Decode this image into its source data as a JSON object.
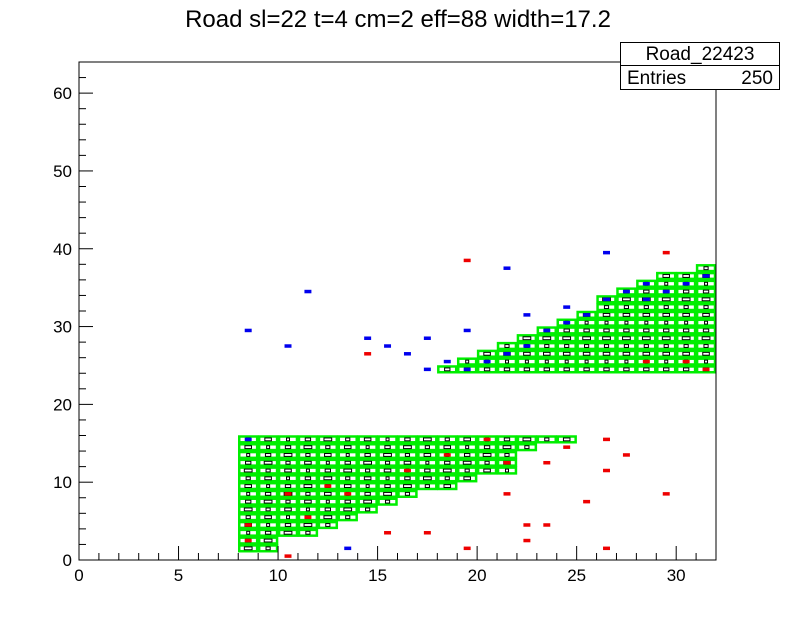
{
  "chart_data": {
    "type": "heatmap",
    "title": "Road sl=22 t=4 cm=2 eff=88 width=17.2",
    "xlabel": "",
    "ylabel": "",
    "xlim": [
      0,
      32
    ],
    "ylim": [
      0,
      64
    ],
    "x_ticks": [
      0,
      5,
      10,
      15,
      20,
      25,
      30
    ],
    "y_ticks": [
      0,
      10,
      20,
      30,
      40,
      50,
      60
    ],
    "grid": false,
    "legend_position": "top-right",
    "stats": {
      "name": "Road_22423",
      "entries_label": "Entries",
      "entries_value": "250"
    },
    "colors": {
      "road": "#00ee00",
      "blue_hits": "#0000ee",
      "red_hits": "#ee0000",
      "boxes": "#000000"
    },
    "road_lower": {
      "y_range": [
        1,
        16
      ],
      "column_tops": [
        [
          8,
          16
        ],
        [
          9,
          16
        ],
        [
          10,
          16
        ],
        [
          11,
          16
        ],
        [
          12,
          16
        ],
        [
          13,
          16
        ],
        [
          14,
          16
        ],
        [
          15,
          16
        ],
        [
          16,
          16
        ],
        [
          17,
          16
        ],
        [
          18,
          16
        ],
        [
          19,
          16
        ],
        [
          20,
          16
        ],
        [
          21,
          16
        ],
        [
          22,
          16
        ],
        [
          23,
          16
        ],
        [
          24,
          16
        ]
      ],
      "column_bottoms": [
        [
          8,
          1
        ],
        [
          9,
          1
        ],
        [
          10,
          3
        ],
        [
          11,
          3
        ],
        [
          12,
          4
        ],
        [
          13,
          5
        ],
        [
          14,
          6
        ],
        [
          15,
          7
        ],
        [
          16,
          8
        ],
        [
          17,
          9
        ],
        [
          18,
          9
        ],
        [
          19,
          10
        ],
        [
          20,
          11
        ],
        [
          21,
          11
        ],
        [
          22,
          14
        ],
        [
          23,
          15
        ],
        [
          24,
          15
        ]
      ]
    },
    "road_upper": {
      "column_tops": [
        [
          18,
          25
        ],
        [
          19,
          26
        ],
        [
          20,
          27
        ],
        [
          21,
          28
        ],
        [
          22,
          29
        ],
        [
          23,
          30
        ],
        [
          24,
          31
        ],
        [
          25,
          32
        ],
        [
          26,
          34
        ],
        [
          27,
          35
        ],
        [
          28,
          36
        ],
        [
          29,
          37
        ],
        [
          30,
          37
        ],
        [
          31,
          38
        ]
      ],
      "y_bottom": 24
    },
    "blue_hits": [
      [
        8.5,
        15.5
      ],
      [
        8.5,
        29.5
      ],
      [
        10.5,
        27.5
      ],
      [
        11.5,
        34.5
      ],
      [
        13.5,
        1.5
      ],
      [
        14.5,
        28.5
      ],
      [
        15.5,
        27.5
      ],
      [
        16.5,
        26.5
      ],
      [
        17.5,
        24.5
      ],
      [
        17.5,
        28.5
      ],
      [
        18.5,
        25.5
      ],
      [
        19.5,
        24.5
      ],
      [
        19.5,
        29.5
      ],
      [
        20.5,
        25.5
      ],
      [
        21.5,
        26.5
      ],
      [
        21.5,
        37.5
      ],
      [
        22.5,
        27.5
      ],
      [
        22.5,
        31.5
      ],
      [
        23.5,
        29.5
      ],
      [
        24.5,
        30.5
      ],
      [
        24.5,
        32.5
      ],
      [
        25.5,
        31.5
      ],
      [
        26.5,
        33.5
      ],
      [
        26.5,
        39.5
      ],
      [
        27.5,
        34.5
      ],
      [
        28.5,
        33.5
      ],
      [
        28.5,
        35.5
      ],
      [
        29.5,
        34.5
      ],
      [
        30.5,
        35.5
      ],
      [
        31.5,
        36.5
      ]
    ],
    "red_hits": [
      [
        8.5,
        2.5
      ],
      [
        8.5,
        4.5
      ],
      [
        10.5,
        0.5
      ],
      [
        10.5,
        8.5
      ],
      [
        11.5,
        5.5
      ],
      [
        12.5,
        9.5
      ],
      [
        13.5,
        8.5
      ],
      [
        14.5,
        26.5
      ],
      [
        15.5,
        3.5
      ],
      [
        16.5,
        11.5
      ],
      [
        17.5,
        3.5
      ],
      [
        18.5,
        13.5
      ],
      [
        19.5,
        1.5
      ],
      [
        19.5,
        38.5
      ],
      [
        20.5,
        15.5
      ],
      [
        21.5,
        8.5
      ],
      [
        21.5,
        12.5
      ],
      [
        22.5,
        2.5
      ],
      [
        22.5,
        4.5
      ],
      [
        23.5,
        4.5
      ],
      [
        23.5,
        12.5
      ],
      [
        24.5,
        14.5
      ],
      [
        25.5,
        7.5
      ],
      [
        26.5,
        1.5
      ],
      [
        26.5,
        11.5
      ],
      [
        26.5,
        15.5
      ],
      [
        27.5,
        13.5
      ],
      [
        28.5,
        25.5
      ],
      [
        29.5,
        8.5
      ],
      [
        29.5,
        39.5
      ],
      [
        30.5,
        25.5
      ],
      [
        31.5,
        24.5
      ]
    ]
  }
}
